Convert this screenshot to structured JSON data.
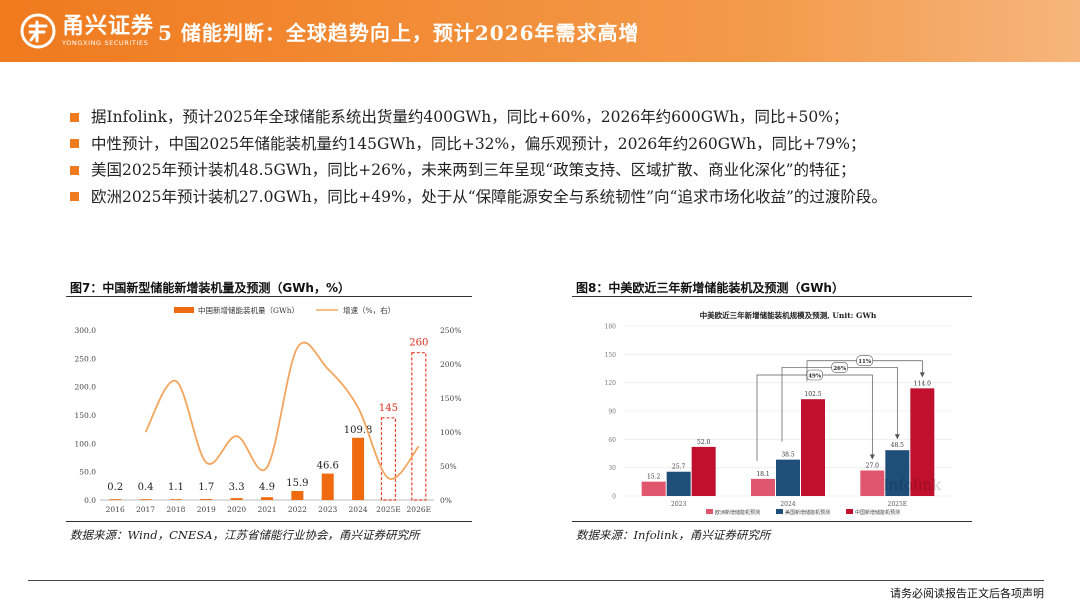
{
  "header": {
    "logo_cn": "甬兴证券",
    "logo_en": "YONGXING SECURITIES",
    "title": "5 储能判断：全球趋势向上，预计2026年需求高增",
    "accent": "#f07a1e"
  },
  "bullets": [
    "据Infolink，预计2025年全球储能系统出货量约400GWh，同比+60%，2026年约600GWh，同比+50%；",
    "中性预计，中国2025年储能装机量约145GWh，同比+32%，偏乐观预计，2026年约260GWh，同比+79%；",
    "美国2025年预计装机48.5GWh，同比+26%，未来两到三年呈现“政策支持、区域扩散、商业化深化”的特征；",
    "欧洲2025年预计装机27.0GWh，同比+49%，处于从“保障能源安全与系统韧性”向“追求市场化收益”的过渡阶段。"
  ],
  "fig7": {
    "title": "图7：中国新型储能新增装机量及预测（GWh，%）",
    "source": "数据来源：Wind，CNESA，江苏省储能行业协会，甬兴证券研究所"
  },
  "fig8": {
    "title": "图8：中美欧近三年新增储能装机及预测（GWh）",
    "source": "数据来源：Infolink，甬兴证券研究所"
  },
  "footer": {
    "disclaimer": "请务必阅读报告正文后各项声明"
  },
  "chart_data": [
    {
      "type": "bar",
      "title": "",
      "categories": [
        "2016",
        "2017",
        "2018",
        "2019",
        "2020",
        "2021",
        "2022",
        "2023",
        "2024",
        "2025E",
        "2026E"
      ],
      "series": [
        {
          "name": "中国新增储能装机量（GWh）",
          "values": [
            0.2,
            0.4,
            1.1,
            1.7,
            3.3,
            4.9,
            15.9,
            46.6,
            109.8,
            145,
            260
          ],
          "color": "#f06a10"
        },
        {
          "name": "增速（%，右）",
          "type": "line",
          "values": [
            null,
            100,
            175,
            55,
            94,
            48,
            224,
            193,
            136,
            32,
            79
          ],
          "color": "#f4a55d"
        }
      ],
      "forecast_categories": [
        "2025E",
        "2026E"
      ],
      "ylim": [
        0,
        300
      ],
      "yticks": [
        "0.0",
        "50.0",
        "100.0",
        "150.0",
        "200.0",
        "250.0",
        "300.0"
      ],
      "y2lim": [
        0,
        250
      ],
      "y2ticks": [
        "0%",
        "50%",
        "100%",
        "150%",
        "200%",
        "250%"
      ],
      "legend": "top"
    },
    {
      "type": "bar",
      "title": "中美欧近三年新增储能装机规模及预测, Unit: GWh",
      "categories": [
        "2023",
        "2024",
        "2025E"
      ],
      "series": [
        {
          "name": "欧洲新增储能机预测",
          "values": [
            15.2,
            18.1,
            27.0
          ],
          "color": "#e0566e"
        },
        {
          "name": "美国新增储能机预测",
          "values": [
            25.7,
            38.5,
            48.5
          ],
          "color": "#1f4e79"
        },
        {
          "name": "中国新增储能机预测",
          "values": [
            52.0,
            102.5,
            114.0
          ],
          "color": "#c0102e"
        }
      ],
      "growth_labels": [
        "49%",
        "26%",
        "11%"
      ],
      "ylim": [
        0,
        180
      ],
      "yticks": [
        "0",
        "30",
        "60",
        "90",
        "120",
        "150",
        "180"
      ],
      "watermark": "Infolink",
      "legend": "bottom"
    }
  ]
}
